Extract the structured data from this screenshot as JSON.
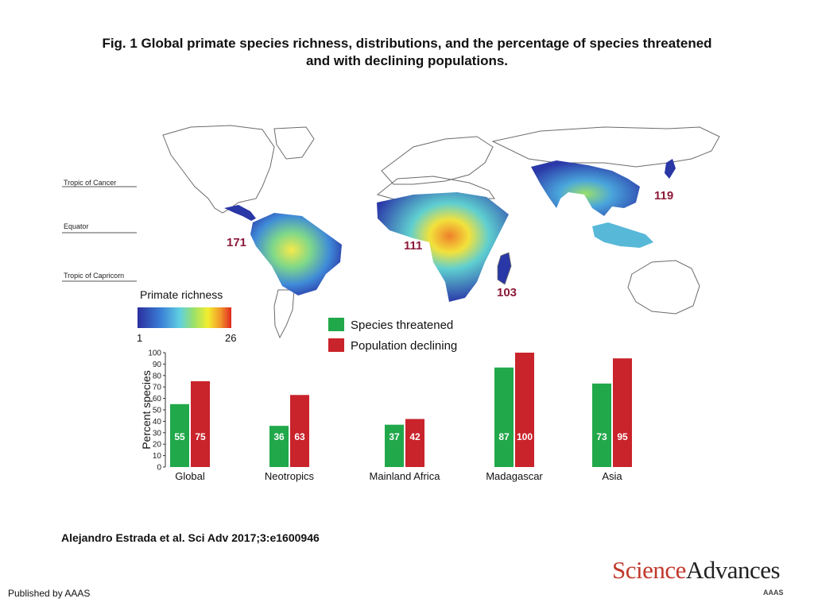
{
  "title_line1": "Fig. 1 Global primate species richness, distributions, and the percentage of species threatened",
  "title_line2": "and with declining populations.",
  "map": {
    "latitude_labels": [
      "Tropic of Cancer",
      "Equator",
      "Tropic of Capricorn"
    ],
    "region_counts": [
      {
        "region": "Neotropics",
        "value": "171"
      },
      {
        "region": "Mainland Africa",
        "value": "111"
      },
      {
        "region": "Madagascar",
        "value": "103"
      },
      {
        "region": "Asia",
        "value": "119"
      }
    ],
    "richness_legend": {
      "title": "Primate richness",
      "min": "1",
      "max": "26"
    }
  },
  "colors": {
    "threatened": "#21a84a",
    "declining": "#c9232b",
    "count_label": "#8b1a3a",
    "ocean": "#ffffff",
    "land_outline": "#6b6b6b",
    "richness_low": "#2b3ba8",
    "richness_high": "#e63a1f"
  },
  "chart_data": {
    "type": "bar",
    "categories": [
      "Global",
      "Neotropics",
      "Mainland Africa",
      "Madagascar",
      "Asia"
    ],
    "series": [
      {
        "name": "Species threatened",
        "values": [
          55,
          36,
          37,
          87,
          73
        ]
      },
      {
        "name": "Population declining",
        "values": [
          75,
          63,
          42,
          100,
          95
        ]
      }
    ],
    "data_labels": [
      [
        "55",
        "36",
        "37",
        "87",
        "73"
      ],
      [
        "75",
        "63",
        "42",
        "100",
        "95"
      ]
    ],
    "ylabel": "Percent species",
    "ylim": [
      0,
      100
    ],
    "yticks": [
      "0",
      "10",
      "20",
      "30",
      "40",
      "50",
      "60",
      "70",
      "80",
      "90",
      "100"
    ],
    "legend_position": "top",
    "grid": false
  },
  "citation": "Alejandro Estrada et al. Sci Adv 2017;3:e1600946",
  "publisher": "Published by AAAS",
  "logo": {
    "part1": "Science",
    "part2": "Advances",
    "sub": "AAAS"
  }
}
